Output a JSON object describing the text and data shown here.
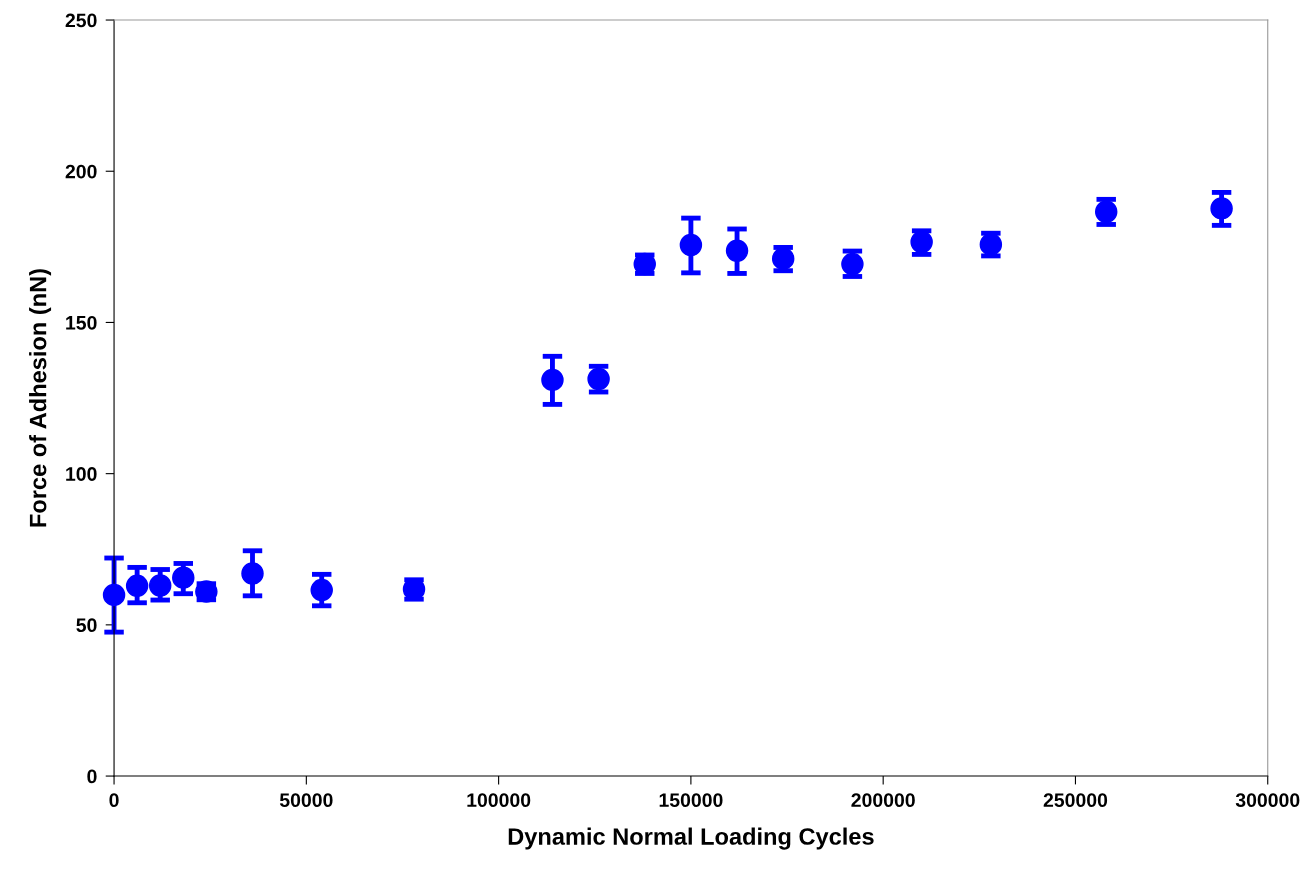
{
  "chart_data": {
    "type": "scatter",
    "xlabel": "Dynamic Normal Loading Cycles",
    "ylabel": "Force of Adhesion (nN)",
    "x": [
      0,
      6000,
      12000,
      18000,
      24000,
      36000,
      54000,
      78000,
      114000,
      126000,
      138000,
      150000,
      162000,
      174000,
      192000,
      210000,
      228000,
      258000,
      288000
    ],
    "series": [
      {
        "color": "#0000ff",
        "values": [
          59.9,
          62.9,
          63.0,
          65.6,
          61.0,
          67.0,
          61.5,
          61.8,
          131.0,
          131.3,
          169.3,
          175.6,
          173.7,
          171.1,
          169.3,
          176.6,
          175.8,
          186.6,
          187.7
        ],
        "errors": [
          [
            47.6,
            72.1
          ],
          [
            57.3,
            69.0
          ],
          [
            58.2,
            68.3
          ],
          [
            60.3,
            70.3
          ],
          [
            58.3,
            63.6
          ],
          [
            59.6,
            74.5
          ],
          [
            56.3,
            66.7
          ],
          [
            58.5,
            64.9
          ],
          [
            122.9,
            138.8
          ],
          [
            127.0,
            135.5
          ],
          [
            166.2,
            172.3
          ],
          [
            166.4,
            184.5
          ],
          [
            166.2,
            180.9
          ],
          [
            167.1,
            174.8
          ],
          [
            165.2,
            173.6
          ],
          [
            172.5,
            180.3
          ],
          [
            172.0,
            179.5
          ],
          [
            182.4,
            190.7
          ],
          [
            182.1,
            193.0
          ]
        ]
      }
    ],
    "xlim": [
      0,
      300000
    ],
    "xticks": [
      0,
      50000,
      100000,
      150000,
      200000,
      250000,
      300000
    ],
    "ylim": [
      0,
      250
    ],
    "yticks": [
      0,
      50,
      100,
      150,
      200,
      250
    ],
    "grid": false,
    "marker": "circle"
  }
}
